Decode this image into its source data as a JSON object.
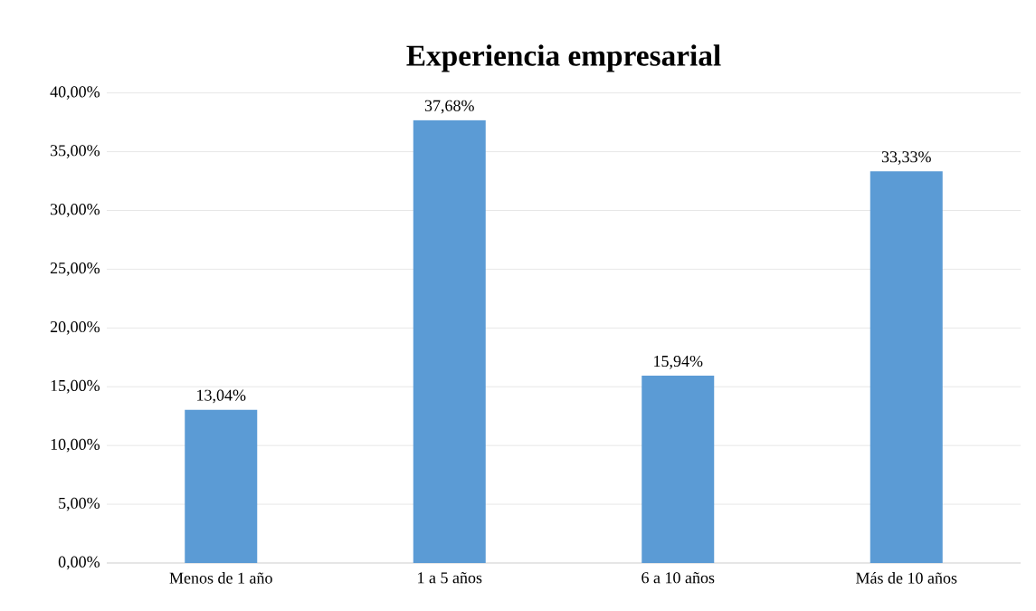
{
  "chart_data": {
    "type": "bar",
    "title": "Experiencia empresarial",
    "categories": [
      "Menos de 1 año",
      "1 a 5 años",
      "6 a 10 años",
      "Más de 10 años"
    ],
    "values": [
      13.04,
      37.68,
      15.94,
      33.33
    ],
    "value_labels": [
      "13,04%",
      "37,68%",
      "15,94%",
      "33,33%"
    ],
    "color": "#5b9bd5",
    "ylim": [
      0,
      40
    ],
    "yticks": [
      {
        "value": 0,
        "label": "0,00%"
      },
      {
        "value": 5,
        "label": "5,00%"
      },
      {
        "value": 10,
        "label": "10,00%"
      },
      {
        "value": 15,
        "label": "15,00%"
      },
      {
        "value": 20,
        "label": "20,00%"
      },
      {
        "value": 25,
        "label": "25,00%"
      },
      {
        "value": 30,
        "label": "30,00%"
      },
      {
        "value": 35,
        "label": "35,00%"
      },
      {
        "value": 40,
        "label": "40,00%"
      }
    ],
    "grid": "y"
  }
}
